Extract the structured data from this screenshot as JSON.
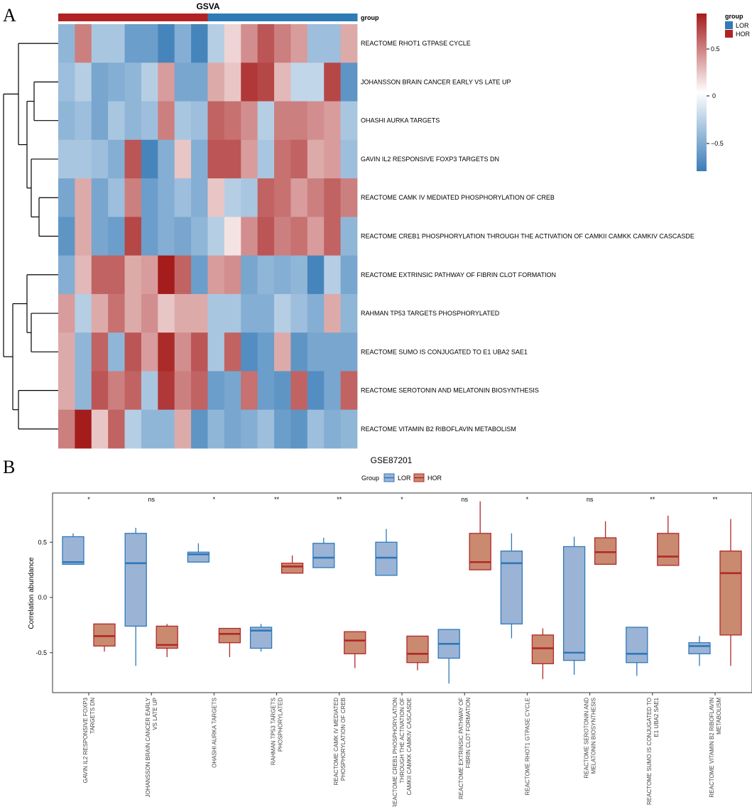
{
  "panels": {
    "a": "A",
    "b": "B"
  },
  "heatmap": {
    "title": "GSVA",
    "annotation_label": "group",
    "legend_title": "group",
    "groups": [
      {
        "name": "LOR",
        "color": "#2e7bb6"
      },
      {
        "name": "HOR",
        "color": "#b22222"
      }
    ],
    "column_groups": [
      "HOR",
      "HOR",
      "HOR",
      "HOR",
      "HOR",
      "HOR",
      "HOR",
      "HOR",
      "HOR",
      "LOR",
      "LOR",
      "LOR",
      "LOR",
      "LOR",
      "LOR",
      "LOR",
      "LOR",
      "LOR"
    ],
    "color_scale": {
      "low": "#3a7db8",
      "mid": "#ffffff",
      "high": "#a51c1c",
      "min": -0.8,
      "max": 0.8
    },
    "colorbar_ticks": [
      "0.5",
      "0",
      "−0.5"
    ],
    "rows": [
      "REACTOME RHOT1 GTPASE CYCLE",
      "JOHANSSON BRAIN CANCER EARLY VS LATE UP",
      "OHASHI AURKA TARGETS",
      "GAVIN IL2 RESPONSIVE FOXP3 TARGETS DN",
      "REACTOME CAMK IV MEDIATED PHOSPHORYLATION OF CREB",
      "REACTOME CREB1 PHOSPHORYLATION THROUGH THE ACTIVATION OF CAMKII CAMKK CAMKIV CASCASDE",
      "REACTOME EXTRINSIC PATHWAY OF FIBRIN CLOT FORMATION",
      "RAHMAN TP53 TARGETS PHOSPHORYLATED",
      "REACTOME SUMO IS CONJUGATED TO E1 UBA2 SAE1",
      "REACTOME SEROTONIN AND MELATONIN BIOSYNTHESIS",
      "REACTOME VITAMIN B2 RIBOFLAVIN METABOLISM"
    ]
  },
  "chart_data": [
    {
      "type": "heatmap",
      "title": "GSVA",
      "rows": [
        "REACTOME RHOT1 GTPASE CYCLE",
        "JOHANSSON BRAIN CANCER EARLY VS LATE UP",
        "OHASHI AURKA TARGETS",
        "GAVIN IL2 RESPONSIVE FOXP3 TARGETS DN",
        "REACTOME CAMK IV MEDIATED PHOSPHORYLATION OF CREB",
        "REACTOME CREB1 PHOSPHORYLATION THROUGH THE ACTIVATION OF CAMKII CAMKK CAMKIV CASCASDE",
        "REACTOME EXTRINSIC PATHWAY OF FIBRIN CLOT FORMATION",
        "RAHMAN TP53 TARGETS PHOSPHORYLATED",
        "REACTOME SUMO IS CONJUGATED TO E1 UBA2 SAE1",
        "REACTOME SEROTONIN AND MELATONIN BIOSYNTHESIS",
        "REACTOME VITAMIN B2 RIBOFLAVIN METABOLISM"
      ],
      "values": [
        [
          -0.45,
          0.45,
          -0.35,
          -0.35,
          -0.6,
          -0.6,
          -0.75,
          -0.5,
          -0.75,
          -0.3,
          0.15,
          0.4,
          0.6,
          0.45,
          0.35,
          -0.4,
          -0.4,
          0.3
        ],
        [
          -0.4,
          -0.3,
          -0.55,
          -0.5,
          -0.45,
          -0.3,
          0.35,
          -0.55,
          -0.55,
          0.3,
          0.2,
          0.7,
          0.65,
          0.25,
          -0.25,
          -0.25,
          0.65,
          -0.65
        ],
        [
          -0.45,
          -0.4,
          -0.55,
          -0.35,
          -0.45,
          -0.4,
          0.45,
          -0.35,
          -0.4,
          0.55,
          0.5,
          0.4,
          -0.3,
          0.45,
          0.45,
          0.4,
          0.35,
          -0.35
        ],
        [
          -0.35,
          -0.35,
          -0.4,
          -0.5,
          0.6,
          -0.75,
          -0.5,
          0.2,
          -0.5,
          0.6,
          0.6,
          0.35,
          -0.35,
          0.5,
          0.55,
          0.3,
          0.35,
          -0.4
        ],
        [
          -0.55,
          0.3,
          -0.55,
          -0.4,
          0.45,
          -0.6,
          -0.5,
          -0.4,
          -0.5,
          0.2,
          -0.3,
          -0.35,
          0.55,
          0.5,
          0.35,
          0.45,
          0.55,
          0.45
        ],
        [
          -0.65,
          0.3,
          -0.55,
          -0.6,
          0.65,
          -0.6,
          -0.5,
          -0.55,
          -0.45,
          -0.3,
          0.1,
          0.4,
          0.6,
          0.45,
          0.5,
          0.35,
          0.55,
          -0.45
        ],
        [
          -0.5,
          0.25,
          0.55,
          0.55,
          0.3,
          0.35,
          0.9,
          0.55,
          -0.6,
          0.35,
          0.4,
          -0.55,
          -0.45,
          -0.5,
          -0.45,
          -0.75,
          -0.3,
          -0.55
        ],
        [
          0.35,
          -0.3,
          0.3,
          0.5,
          0.3,
          0.4,
          0.2,
          0.3,
          0.3,
          -0.35,
          -0.35,
          -0.5,
          -0.5,
          -0.3,
          -0.4,
          -0.5,
          0.3,
          -0.45
        ],
        [
          0.3,
          -0.45,
          0.55,
          -0.45,
          0.6,
          0.35,
          0.75,
          0.4,
          0.6,
          -0.35,
          0.55,
          -0.7,
          -0.6,
          0.3,
          -0.65,
          -0.55,
          -0.55,
          -0.55
        ],
        [
          0.3,
          -0.45,
          0.6,
          0.45,
          0.55,
          -0.35,
          0.7,
          0.45,
          0.55,
          -0.6,
          -0.55,
          0.5,
          -0.6,
          -0.65,
          0.55,
          -0.7,
          -0.55,
          0.55
        ],
        [
          0.45,
          0.8,
          0.2,
          0.55,
          -0.3,
          -0.45,
          -0.45,
          0.3,
          -0.65,
          -0.45,
          -0.55,
          -0.5,
          -0.4,
          -0.6,
          -0.65,
          -0.4,
          -0.5,
          -0.45
        ]
      ]
    },
    {
      "type": "boxplot",
      "title": "GSE87201",
      "legend_title": "Group",
      "legend": [
        "LOR",
        "HOR"
      ],
      "series_colors": {
        "LOR": {
          "fill": "#9bb4d6",
          "line": "#2f78b8"
        },
        "HOR": {
          "fill": "#c98a6f",
          "line": "#b1282b"
        }
      },
      "ylabel": "Correlation abundance",
      "ylim": [
        -0.85,
        0.95
      ],
      "yticks": [
        "0.5",
        "0.0",
        "-0.5"
      ],
      "categories": [
        "GAVIN IL2 RESPONSIVE FOXP3 TARGETS DN",
        "JOHANSSON BRAIN CANCER EARLY VS LATE UP",
        "OHASHI AURKA TARGETS",
        "RAHMAN TP53 TARGETS PHOSPHORYLATED",
        "REACTOME CAMK IV MEDIATED PHOSPHORYLATION OF CREB",
        "REACTOME CREB1 PHOSPHORYLATION THROUGH THE ACTIVATION OF CAMKII CAMKK CAMKIV CASCASDE",
        "REACTOME EXTRINSIC PATHWAY OF FIBRIN CLOT FORMATION",
        "REACTOME RHOT1 GTPASE CYCLE",
        "REACTOME SEROTONIN AND MELATONIN BIOSYNTHESIS",
        "REACTOME SUMO IS CONJUGATED TO E1 UBA2 SAE1",
        "REACTOME VITAMIN B2 RIBOFLAVIN METABOLISM"
      ],
      "category_labels": [
        [
          "GAVIN IL2 RESPONSIVE FOXP3",
          "TARGETS DN"
        ],
        [
          "JOHANSSON BRAIN CANCER EARLY",
          "VS LATE UP"
        ],
        [
          "OHASHI AURKA TARGETS"
        ],
        [
          "RAHMAN TP53 TARGETS",
          "PHOSPHORYLATED"
        ],
        [
          "REACTOME CAMK IV MEDIATED",
          "PHOSPHORYLATION OF CREB"
        ],
        [
          "REACTOME CREB1 PHOSPHORYLATION",
          "THROUGH THE ACTIVATION OF",
          "CAMKII CAMKK CAMKIV CASCASDE"
        ],
        [
          "REACTOME EXTRINSIC PATHWAY OF",
          "FIBRIN CLOT FORMATION"
        ],
        [
          "REACTOME RHOT1 GTPASE CYCLE"
        ],
        [
          "REACTOME SEROTONIN AND",
          "MELATONIN BIOSYNTHESIS"
        ],
        [
          "REACTOME SUMO IS CONJUGATED TO",
          "E1 UBA2 SAE1"
        ],
        [
          "REACTOME VITAMIN B2 RIBOFLAVIN",
          "METABOLISM"
        ]
      ],
      "significance": [
        "*",
        "ns",
        "*",
        "**",
        "**",
        "*",
        "ns",
        "*",
        "ns",
        "**",
        "**"
      ],
      "boxes": {
        "LOR": [
          {
            "min": 0.3,
            "q1": 0.3,
            "median": 0.32,
            "q3": 0.55,
            "max": 0.58
          },
          {
            "min": -0.62,
            "q1": -0.26,
            "median": 0.31,
            "q3": 0.58,
            "max": 0.63
          },
          {
            "min": 0.32,
            "q1": 0.32,
            "median": 0.39,
            "q3": 0.41,
            "max": 0.49
          },
          {
            "min": -0.49,
            "q1": -0.46,
            "median": -0.3,
            "q3": -0.27,
            "max": -0.24
          },
          {
            "min": 0.27,
            "q1": 0.27,
            "median": 0.36,
            "q3": 0.49,
            "max": 0.54
          },
          {
            "min": 0.2,
            "q1": 0.2,
            "median": 0.36,
            "q3": 0.5,
            "max": 0.62
          },
          {
            "min": -0.78,
            "q1": -0.55,
            "median": -0.42,
            "q3": -0.29,
            "max": -0.29
          },
          {
            "min": -0.37,
            "q1": -0.24,
            "median": 0.31,
            "q3": 0.42,
            "max": 0.58
          },
          {
            "min": -0.7,
            "q1": -0.57,
            "median": -0.5,
            "q3": 0.46,
            "max": 0.55
          },
          {
            "min": -0.71,
            "q1": -0.59,
            "median": -0.51,
            "q3": -0.27,
            "max": -0.27
          },
          {
            "min": -0.62,
            "q1": -0.51,
            "median": -0.44,
            "q3": -0.41,
            "max": -0.35
          }
        ],
        "HOR": [
          {
            "min": -0.49,
            "q1": -0.44,
            "median": -0.35,
            "q3": -0.24,
            "max": -0.24
          },
          {
            "min": -0.54,
            "q1": -0.46,
            "median": -0.43,
            "q3": -0.26,
            "max": -0.24
          },
          {
            "min": -0.54,
            "q1": -0.41,
            "median": -0.33,
            "q3": -0.28,
            "max": -0.28
          },
          {
            "min": 0.22,
            "q1": 0.22,
            "median": 0.28,
            "q3": 0.31,
            "max": 0.38
          },
          {
            "min": -0.64,
            "q1": -0.51,
            "median": -0.39,
            "q3": -0.31,
            "max": -0.31
          },
          {
            "min": -0.66,
            "q1": -0.59,
            "median": -0.51,
            "q3": -0.35,
            "max": -0.35
          },
          {
            "min": 0.25,
            "q1": 0.25,
            "median": 0.32,
            "q3": 0.58,
            "max": 0.87
          },
          {
            "min": -0.74,
            "q1": -0.6,
            "median": -0.46,
            "q3": -0.34,
            "max": -0.28
          },
          {
            "min": 0.3,
            "q1": 0.3,
            "median": 0.41,
            "q3": 0.54,
            "max": 0.69
          },
          {
            "min": 0.29,
            "q1": 0.29,
            "median": 0.37,
            "q3": 0.58,
            "max": 0.74
          },
          {
            "min": -0.62,
            "q1": -0.34,
            "median": 0.22,
            "q3": 0.42,
            "max": 0.71
          }
        ]
      }
    }
  ]
}
